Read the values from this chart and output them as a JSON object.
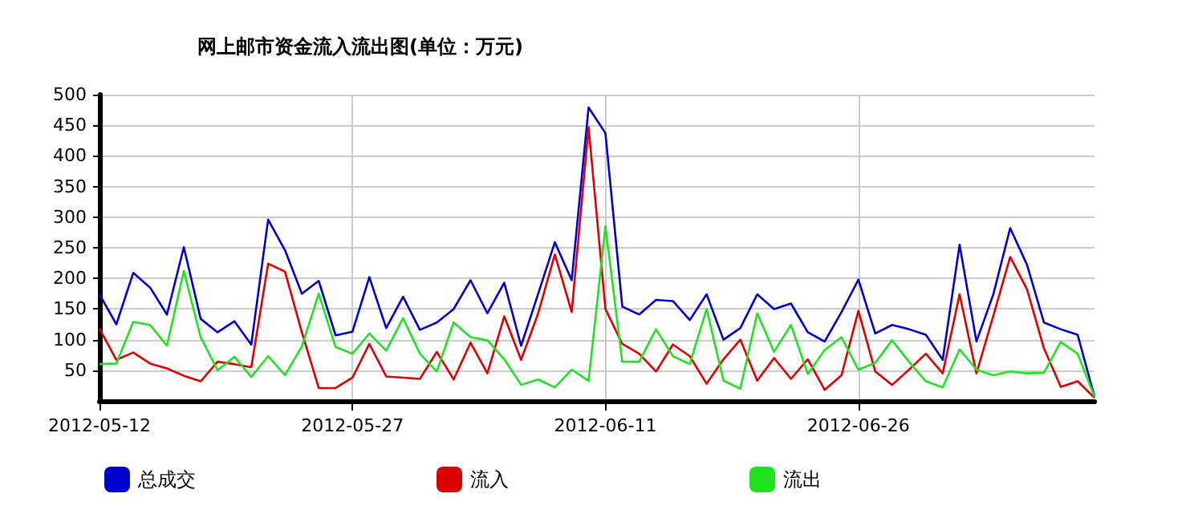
{
  "chart_data": {
    "type": "line",
    "title": "网上邮市资金流入流出图(单位：万元)",
    "x": [
      "2012-05-12",
      "2012-05-13",
      "2012-05-14",
      "2012-05-15",
      "2012-05-16",
      "2012-05-17",
      "2012-05-18",
      "2012-05-19",
      "2012-05-20",
      "2012-05-21",
      "2012-05-22",
      "2012-05-23",
      "2012-05-24",
      "2012-05-25",
      "2012-05-26",
      "2012-05-27",
      "2012-05-28",
      "2012-05-29",
      "2012-05-30",
      "2012-05-31",
      "2012-06-01",
      "2012-06-02",
      "2012-06-03",
      "2012-06-04",
      "2012-06-05",
      "2012-06-06",
      "2012-06-07",
      "2012-06-08",
      "2012-06-09",
      "2012-06-10",
      "2012-06-11",
      "2012-06-12",
      "2012-06-13",
      "2012-06-14",
      "2012-06-15",
      "2012-06-16",
      "2012-06-17",
      "2012-06-18",
      "2012-06-19",
      "2012-06-20",
      "2012-06-21",
      "2012-06-22",
      "2012-06-23",
      "2012-06-24",
      "2012-06-25",
      "2012-06-26",
      "2012-06-27",
      "2012-06-28",
      "2012-06-29",
      "2012-06-30",
      "2012-07-01",
      "2012-07-02",
      "2012-07-03",
      "2012-07-04",
      "2012-07-05",
      "2012-07-06",
      "2012-07-07",
      "2012-07-08",
      "2012-07-09",
      "2012-07-10"
    ],
    "series": [
      {
        "name": "总成交",
        "color": "#0000cc",
        "values": [
          174,
          125,
          209,
          185,
          141,
          251,
          134,
          112,
          130,
          92,
          296,
          246,
          175,
          196,
          107,
          113,
          202,
          119,
          170,
          116,
          128,
          150,
          197,
          143,
          193,
          90,
          174,
          259,
          197,
          479,
          437,
          154,
          141,
          165,
          163,
          132,
          174,
          100,
          119,
          174,
          150,
          159,
          112,
          97,
          145,
          198,
          110,
          124,
          117,
          108,
          67,
          255,
          97,
          174,
          282,
          222,
          128,
          117,
          108,
          7
        ]
      },
      {
        "name": "流入",
        "color": "#dd0000",
        "values": [
          118,
          67,
          79,
          61,
          53,
          41,
          32,
          64,
          60,
          55,
          224,
          211,
          112,
          21,
          21,
          38,
          93,
          40,
          38,
          36,
          80,
          35,
          95,
          45,
          138,
          67,
          142,
          239,
          145,
          447,
          150,
          93,
          77,
          48,
          92,
          73,
          28,
          68,
          100,
          33,
          70,
          36,
          68,
          18,
          42,
          147,
          48,
          26,
          51,
          77,
          45,
          174,
          45,
          139,
          235,
          182,
          86,
          23,
          32,
          5
        ]
      },
      {
        "name": "流出",
        "color": "#22e022",
        "values": [
          60,
          61,
          129,
          124,
          90,
          212,
          104,
          50,
          72,
          39,
          73,
          42,
          89,
          175,
          88,
          77,
          110,
          82,
          135,
          77,
          48,
          128,
          104,
          99,
          68,
          26,
          35,
          22,
          51,
          33,
          285,
          64,
          64,
          117,
          73,
          60,
          150,
          33,
          20,
          143,
          80,
          124,
          44,
          83,
          104,
          51,
          62,
          99,
          64,
          32,
          22,
          84,
          51,
          42,
          48,
          45,
          46,
          96,
          77,
          7
        ]
      }
    ],
    "xlim": [
      "2012-05-12",
      "2012-07-10"
    ],
    "xticks": [
      "2012-05-12",
      "2012-05-27",
      "2012-06-11",
      "2012-06-26"
    ],
    "ylim": [
      0,
      500
    ],
    "yticks": [
      50,
      100,
      150,
      200,
      250,
      300,
      350,
      400,
      450,
      500
    ],
    "grid": true,
    "legend": "bottom",
    "marker": "none",
    "line_style": "solid"
  }
}
